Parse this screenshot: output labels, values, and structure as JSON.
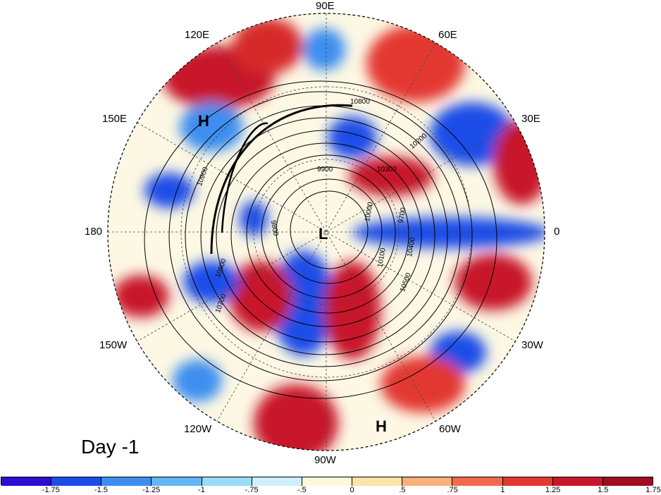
{
  "panel_label": "Day -1",
  "longitude_labels": {
    "lon_90e": "90E",
    "lon_60e": "60E",
    "lon_30e": "30E",
    "lon_0": "0",
    "lon_30w": "30W",
    "lon_60w": "60W",
    "lon_90w": "90W",
    "lon_120w": "120W",
    "lon_150w": "150W",
    "lon_180": "180",
    "lon_150e": "150E",
    "lon_120e": "120E"
  },
  "pressure_centers": {
    "high_pacific": "H",
    "low_pole": "L",
    "high_atlantic": "H"
  },
  "contour_labels": [
    "10800",
    "10900",
    "10700",
    "10600",
    "10500",
    "10400",
    "10300",
    "10200",
    "10100",
    "10000",
    "9900",
    "9800",
    "9700"
  ],
  "colorbar": {
    "colors": [
      "#2a0fd1",
      "#1c4de8",
      "#3d8ef0",
      "#62b6f5",
      "#99dcfa",
      "#cdf0fc",
      "#fdf8d8",
      "#fde3a6",
      "#f9b07a",
      "#f26a4d",
      "#e33732",
      "#c8172a",
      "#a00d20"
    ],
    "ticks": [
      "-1.75",
      "-1.5",
      "-1.25",
      "-1",
      "-.75",
      "-.5",
      "0",
      ".5",
      ".75",
      "1",
      "1.25",
      "1.5",
      "1.75"
    ]
  }
}
